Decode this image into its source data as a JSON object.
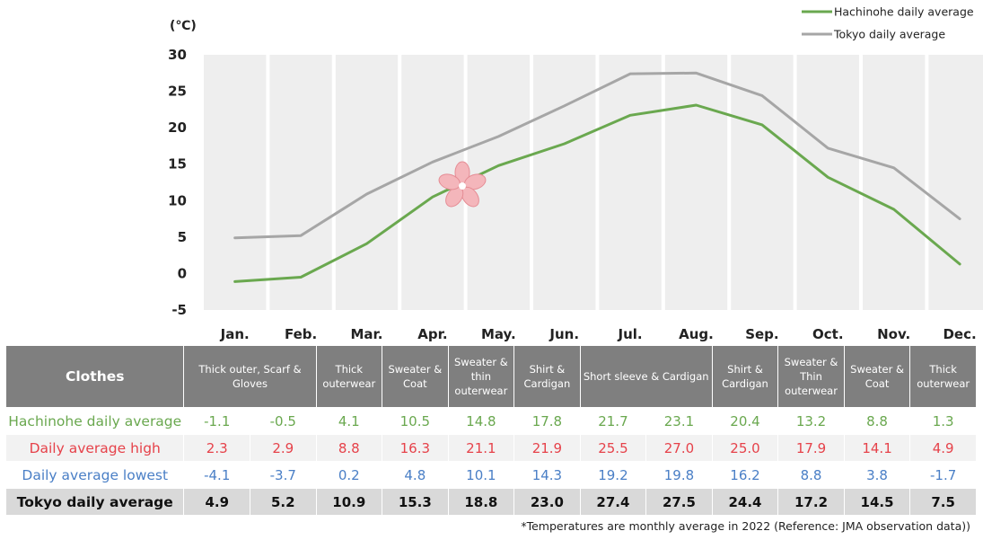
{
  "chart_data": {
    "type": "line",
    "unit_label": "(℃)",
    "categories": [
      "Jan.",
      "Feb.",
      "Mar.",
      "Apr.",
      "May.",
      "Jun.",
      "Jul.",
      "Aug.",
      "Sep.",
      "Oct.",
      "Nov.",
      "Dec."
    ],
    "ylim": [
      -5,
      30
    ],
    "yticks": [
      30,
      25,
      20,
      15,
      10,
      5,
      0,
      -5
    ],
    "grid": true,
    "legend_position": "top-right",
    "series": [
      {
        "name": "Hachinohe daily average",
        "color": "#6aa84f",
        "values": [
          -1.1,
          -0.5,
          4.1,
          10.5,
          14.8,
          17.8,
          21.7,
          23.1,
          20.4,
          13.2,
          8.8,
          1.3
        ]
      },
      {
        "name": "Tokyo daily average",
        "color": "#a6a6a6",
        "values": [
          4.9,
          5.2,
          10.9,
          15.3,
          18.8,
          23.0,
          27.4,
          27.5,
          24.4,
          17.2,
          14.5,
          7.5
        ]
      }
    ],
    "plot_background": "#eeeeee",
    "decoration_icon": "cherry-blossom-icon"
  },
  "table": {
    "clothes_header": "Clothes",
    "clothes": [
      {
        "label": "Thick outer, Scarf & Gloves",
        "span": 2
      },
      {
        "label": "Thick outerwear",
        "span": 1
      },
      {
        "label": "Sweater & Coat",
        "span": 1
      },
      {
        "label": "Sweater & thin outerwear",
        "span": 1
      },
      {
        "label": "Shirt & Cardigan",
        "span": 1
      },
      {
        "label": "Short sleeve & Cardigan",
        "span": 2
      },
      {
        "label": "Shirt & Cardigan",
        "span": 1
      },
      {
        "label": "Sweater & Thin outerwear",
        "span": 1
      },
      {
        "label": "Sweater & Coat",
        "span": 1
      },
      {
        "label": "Thick outerwear",
        "span": 1
      }
    ],
    "rows": [
      {
        "key": "hachi",
        "label": "Hachinohe daily average",
        "values": [
          "-1.1",
          "-0.5",
          "4.1",
          "10.5",
          "14.8",
          "17.8",
          "21.7",
          "23.1",
          "20.4",
          "13.2",
          "8.8",
          "1.3"
        ]
      },
      {
        "key": "high",
        "label": "Daily average high",
        "values": [
          "2.3",
          "2.9",
          "8.8",
          "16.3",
          "21.1",
          "21.9",
          "25.5",
          "27.0",
          "25.0",
          "17.9",
          "14.1",
          "4.9"
        ]
      },
      {
        "key": "low",
        "label": "Daily average lowest",
        "values": [
          "-4.1",
          "-3.7",
          "0.2",
          "4.8",
          "10.1",
          "14.3",
          "19.2",
          "19.8",
          "16.2",
          "8.8",
          "3.8",
          "-1.7"
        ]
      },
      {
        "key": "tokyo",
        "label": "Tokyo daily average",
        "values": [
          "4.9",
          "5.2",
          "10.9",
          "15.3",
          "18.8",
          "23.0",
          "27.4",
          "27.5",
          "24.4",
          "17.2",
          "14.5",
          "7.5"
        ]
      }
    ]
  },
  "footnote": "*Temperatures are monthly average in 2022 (Reference: JMA observation data))"
}
